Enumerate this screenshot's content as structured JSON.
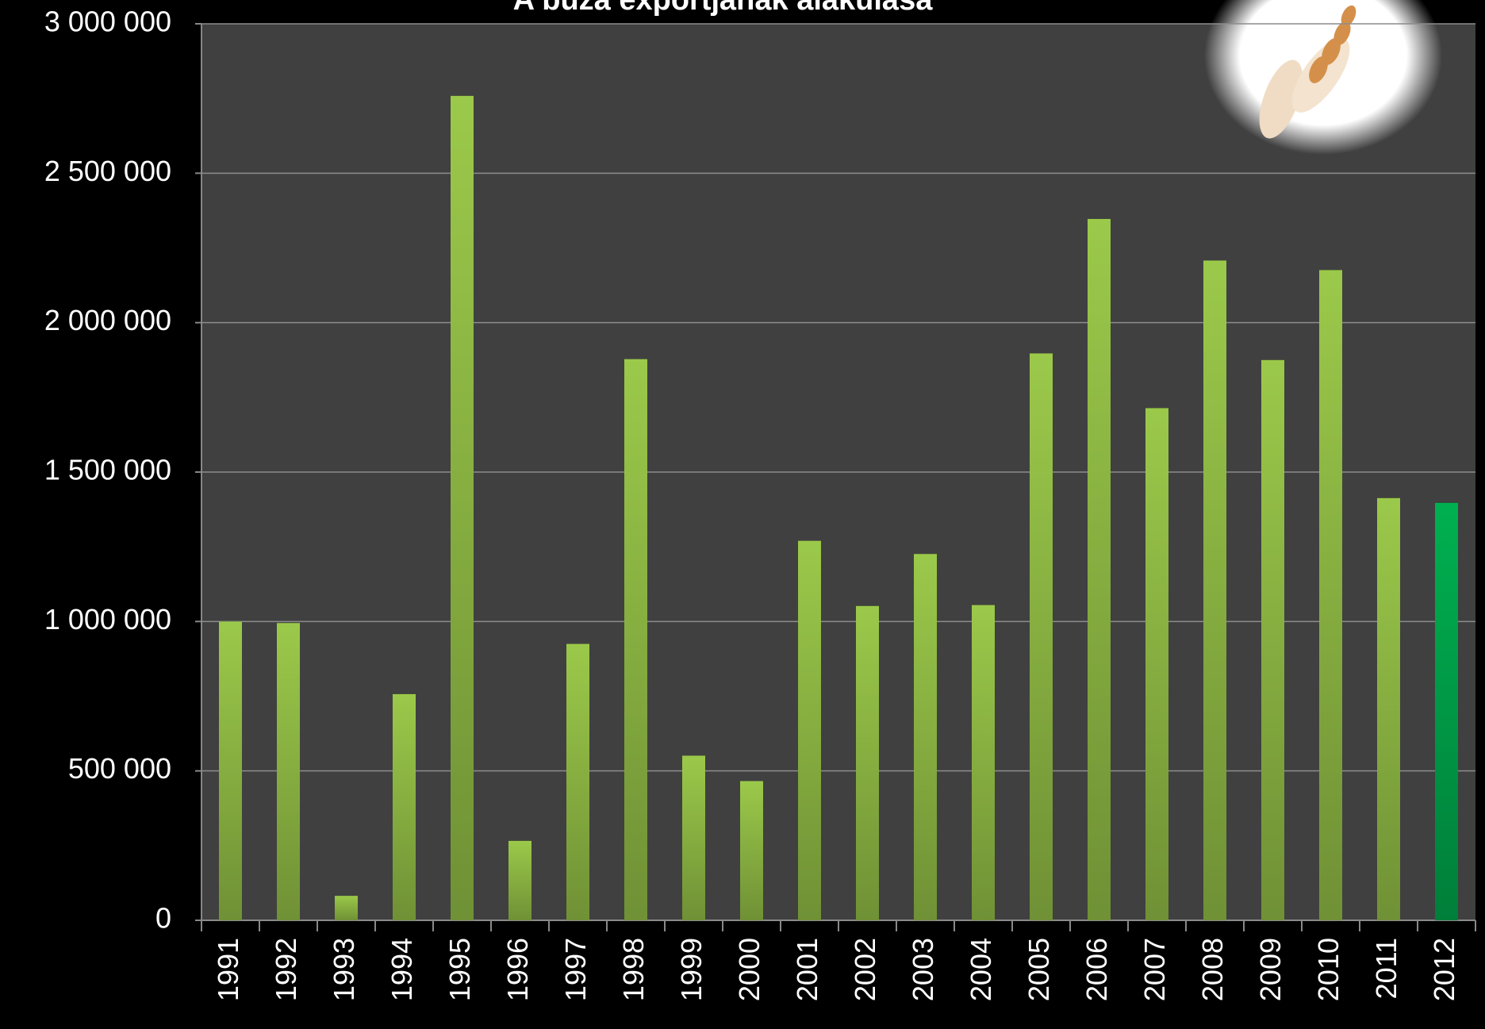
{
  "chart_data": {
    "type": "bar",
    "title": "A búza exportjának alakulása",
    "categories": [
      "1991",
      "1992",
      "1993",
      "1994",
      "1995",
      "1996",
      "1997",
      "1998",
      "1999",
      "2000",
      "2001",
      "2002",
      "2003",
      "2004",
      "2005",
      "2006",
      "2007",
      "2008",
      "2009",
      "2010",
      "2011",
      "2012"
    ],
    "values": [
      1000000,
      995000,
      82000,
      757000,
      2759000,
      266000,
      925000,
      1878000,
      551000,
      466000,
      1270000,
      1052000,
      1226000,
      1055000,
      1897000,
      2347000,
      1714000,
      2208000,
      1875000,
      2176000,
      1413000,
      1397000
    ],
    "colors": [
      "#9bc94a",
      "#9bc94a",
      "#9bc94a",
      "#9bc94a",
      "#9bc94a",
      "#9bc94a",
      "#9bc94a",
      "#9bc94a",
      "#9bc94a",
      "#9bc94a",
      "#9bc94a",
      "#9bc94a",
      "#9bc94a",
      "#9bc94a",
      "#9bc94a",
      "#9bc94a",
      "#9bc94a",
      "#9bc94a",
      "#9bc94a",
      "#9bc94a",
      "#9bc94a",
      "#00b050"
    ],
    "ylim": [
      0,
      3000000
    ],
    "yticks": [
      0,
      {
        "value": 500000,
        "label": "500 000"
      },
      {
        "value": 1000000,
        "label": "1 000 000"
      },
      {
        "value": 1500000,
        "label": "1 500 000"
      },
      {
        "value": 2000000,
        "label": "2 000 000"
      },
      {
        "value": 2500000,
        "label": "2 500 000"
      },
      {
        "value": 3000000,
        "label": "3 000 000"
      }
    ],
    "grid": true
  }
}
